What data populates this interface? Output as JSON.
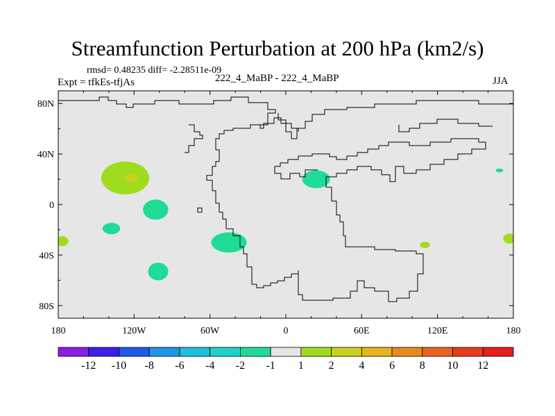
{
  "header": {
    "title": "Streamfunction Perturbation at 200 hPa (km2/s)",
    "stats": "rmsd= 0.48235 diff= -2.28511e-09",
    "experiment": "Expt = tfkEs-tfjAs",
    "case": "222_4_MaBP - 222_4_MaBP",
    "season": "JJA"
  },
  "colors": {
    "background_fill": "#e6e6e6",
    "coast": "#000000",
    "levels": [
      "#8a1ee6",
      "#3c1ee6",
      "#1e5ae6",
      "#1e96e6",
      "#1ebedc",
      "#1ed2c8",
      "#1edc96",
      "#e6e6e6",
      "#a0dc1e",
      "#c8d21e",
      "#e6b41e",
      "#e68c1e",
      "#e6641e",
      "#e63c1e",
      "#e61e1e"
    ]
  },
  "chart_data": {
    "type": "contour_map",
    "projection": "cylindrical equidistant",
    "xlim": [
      -180,
      180
    ],
    "ylim": [
      -90,
      90
    ],
    "x_ticks": [
      "180",
      "120W",
      "60W",
      "0",
      "60E",
      "120E",
      "180"
    ],
    "x_tick_values": [
      -180,
      -120,
      -60,
      0,
      60,
      120,
      180
    ],
    "y_ticks": [
      "80N",
      "40N",
      "0",
      "40S",
      "80S"
    ],
    "y_tick_values": [
      80,
      40,
      0,
      -40,
      -80
    ],
    "colorbar_labels": [
      "-12",
      "-10",
      "-8",
      "-6",
      "-4",
      "-2",
      "-1",
      "1",
      "2",
      "4",
      "6",
      "8",
      "10",
      "12"
    ],
    "features": [
      {
        "lon": -127,
        "lat": 21,
        "rx": 19,
        "ry": 13,
        "value": 2
      },
      {
        "lon": -122,
        "lat": 21,
        "rx": 5,
        "ry": 3.5,
        "value": 4
      },
      {
        "lon": -103,
        "lat": -4,
        "rx": 10,
        "ry": 8,
        "value": -1.5
      },
      {
        "lon": -138,
        "lat": -19,
        "rx": 7,
        "ry": 4.5,
        "value": -1.5
      },
      {
        "lon": -101,
        "lat": -53,
        "rx": 8,
        "ry": 7,
        "value": -1.5
      },
      {
        "lon": -45,
        "lat": -30,
        "rx": 14,
        "ry": 8,
        "value": -1.5
      },
      {
        "lon": 24,
        "lat": 20,
        "rx": 11,
        "ry": 7,
        "value": -1.5
      },
      {
        "lon": 110,
        "lat": -32,
        "rx": 4,
        "ry": 2.5,
        "value": 2
      },
      {
        "lon": 169,
        "lat": 27,
        "rx": 3,
        "ry": 1.5,
        "value": -1.5
      },
      {
        "lon": -177,
        "lat": -29,
        "rx": 5,
        "ry": 4,
        "value": 2
      },
      {
        "lon": 177,
        "lat": -27,
        "rx": 5,
        "ry": 4,
        "value": 2
      }
    ]
  }
}
